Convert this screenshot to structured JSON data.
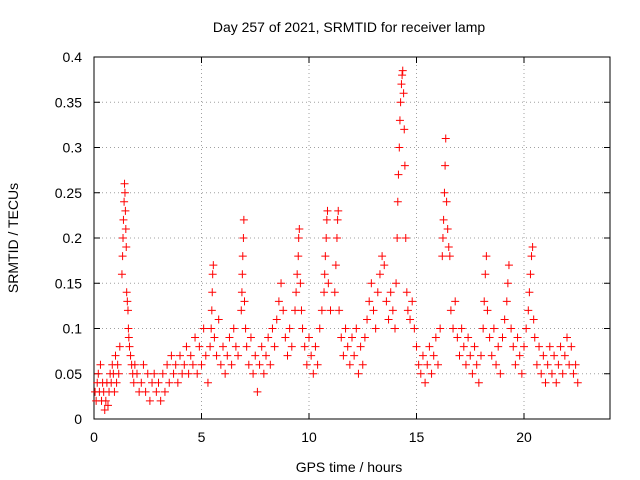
{
  "chart_data": {
    "type": "scatter",
    "title": "Day 257 of 2021, SRMTID for receiver lamp",
    "xlabel": "GPS time / hours",
    "ylabel": "SRMTID / TECUs",
    "xlim": [
      0,
      24
    ],
    "ylim": [
      0,
      0.4
    ],
    "xticks": [
      0,
      5,
      10,
      15,
      20
    ],
    "xtick_labels": [
      "0",
      "5",
      "10",
      "15",
      "20"
    ],
    "yticks": [
      0,
      0.05,
      0.1,
      0.15,
      0.2,
      0.25,
      0.3,
      0.35,
      0.4
    ],
    "ytick_labels": [
      "0",
      "0.05",
      "0.1",
      "0.15",
      "0.2",
      "0.25",
      "0.3",
      "0.35",
      "0.4"
    ],
    "grid": true,
    "marker": "plus",
    "marker_color": "#ff0000",
    "series": [
      {
        "name": "SRMTID",
        "points": [
          [
            0.05,
            0.03
          ],
          [
            0.1,
            0.02
          ],
          [
            0.15,
            0.04
          ],
          [
            0.2,
            0.05
          ],
          [
            0.25,
            0.03
          ],
          [
            0.3,
            0.06
          ],
          [
            0.35,
            0.02
          ],
          [
            0.4,
            0.04
          ],
          [
            0.45,
            0.03
          ],
          [
            0.5,
            0.01
          ],
          [
            0.55,
            0.02
          ],
          [
            0.6,
            0.04
          ],
          [
            0.65,
            0.015
          ],
          [
            0.7,
            0.03
          ],
          [
            0.75,
            0.05
          ],
          [
            0.8,
            0.04
          ],
          [
            0.85,
            0.06
          ],
          [
            0.9,
            0.05
          ],
          [
            0.95,
            0.03
          ],
          [
            1.0,
            0.07
          ],
          [
            1.05,
            0.04
          ],
          [
            1.1,
            0.06
          ],
          [
            1.15,
            0.05
          ],
          [
            1.2,
            0.08
          ],
          [
            1.3,
            0.16
          ],
          [
            1.33,
            0.18
          ],
          [
            1.35,
            0.2
          ],
          [
            1.37,
            0.22
          ],
          [
            1.4,
            0.24
          ],
          [
            1.42,
            0.26
          ],
          [
            1.44,
            0.25
          ],
          [
            1.46,
            0.23
          ],
          [
            1.48,
            0.21
          ],
          [
            1.5,
            0.19
          ],
          [
            1.52,
            0.14
          ],
          [
            1.55,
            0.13
          ],
          [
            1.58,
            0.12
          ],
          [
            1.6,
            0.1
          ],
          [
            1.62,
            0.09
          ],
          [
            1.65,
            0.08
          ],
          [
            1.7,
            0.07
          ],
          [
            1.75,
            0.06
          ],
          [
            1.8,
            0.05
          ],
          [
            1.85,
            0.04
          ],
          [
            1.9,
            0.06
          ],
          [
            2.0,
            0.05
          ],
          [
            2.1,
            0.03
          ],
          [
            2.2,
            0.04
          ],
          [
            2.3,
            0.06
          ],
          [
            2.4,
            0.03
          ],
          [
            2.5,
            0.05
          ],
          [
            2.6,
            0.02
          ],
          [
            2.7,
            0.04
          ],
          [
            2.8,
            0.05
          ],
          [
            2.9,
            0.03
          ],
          [
            3.0,
            0.04
          ],
          [
            3.1,
            0.02
          ],
          [
            3.2,
            0.05
          ],
          [
            3.3,
            0.03
          ],
          [
            3.4,
            0.06
          ],
          [
            3.5,
            0.04
          ],
          [
            3.6,
            0.07
          ],
          [
            3.7,
            0.05
          ],
          [
            3.8,
            0.06
          ],
          [
            3.9,
            0.04
          ],
          [
            4.0,
            0.07
          ],
          [
            4.1,
            0.05
          ],
          [
            4.2,
            0.06
          ],
          [
            4.3,
            0.08
          ],
          [
            4.4,
            0.05
          ],
          [
            4.5,
            0.07
          ],
          [
            4.6,
            0.06
          ],
          [
            4.7,
            0.09
          ],
          [
            4.8,
            0.05
          ],
          [
            4.9,
            0.08
          ],
          [
            5.0,
            0.06
          ],
          [
            5.1,
            0.1
          ],
          [
            5.2,
            0.07
          ],
          [
            5.3,
            0.04
          ],
          [
            5.4,
            0.08
          ],
          [
            5.45,
            0.1
          ],
          [
            5.48,
            0.12
          ],
          [
            5.5,
            0.14
          ],
          [
            5.52,
            0.16
          ],
          [
            5.55,
            0.17
          ],
          [
            5.6,
            0.09
          ],
          [
            5.7,
            0.07
          ],
          [
            5.8,
            0.11
          ],
          [
            5.9,
            0.06
          ],
          [
            6.0,
            0.08
          ],
          [
            6.1,
            0.05
          ],
          [
            6.2,
            0.07
          ],
          [
            6.3,
            0.09
          ],
          [
            6.4,
            0.06
          ],
          [
            6.5,
            0.1
          ],
          [
            6.6,
            0.08
          ],
          [
            6.7,
            0.07
          ],
          [
            6.85,
            0.12
          ],
          [
            6.88,
            0.14
          ],
          [
            6.9,
            0.16
          ],
          [
            6.92,
            0.18
          ],
          [
            6.95,
            0.2
          ],
          [
            6.97,
            0.22
          ],
          [
            7.0,
            0.13
          ],
          [
            7.05,
            0.1
          ],
          [
            7.1,
            0.08
          ],
          [
            7.2,
            0.06
          ],
          [
            7.3,
            0.09
          ],
          [
            7.4,
            0.05
          ],
          [
            7.5,
            0.07
          ],
          [
            7.6,
            0.03
          ],
          [
            7.7,
            0.06
          ],
          [
            7.8,
            0.08
          ],
          [
            7.9,
            0.05
          ],
          [
            8.0,
            0.07
          ],
          [
            8.1,
            0.09
          ],
          [
            8.2,
            0.06
          ],
          [
            8.3,
            0.1
          ],
          [
            8.4,
            0.08
          ],
          [
            8.5,
            0.11
          ],
          [
            8.6,
            0.13
          ],
          [
            8.7,
            0.15
          ],
          [
            8.8,
            0.12
          ],
          [
            8.9,
            0.09
          ],
          [
            9.0,
            0.07
          ],
          [
            9.1,
            0.1
          ],
          [
            9.2,
            0.08
          ],
          [
            9.35,
            0.12
          ],
          [
            9.4,
            0.14
          ],
          [
            9.45,
            0.16
          ],
          [
            9.5,
            0.18
          ],
          [
            9.52,
            0.2
          ],
          [
            9.55,
            0.21
          ],
          [
            9.6,
            0.15
          ],
          [
            9.65,
            0.12
          ],
          [
            9.7,
            0.1
          ],
          [
            9.8,
            0.08
          ],
          [
            9.9,
            0.06
          ],
          [
            10.0,
            0.09
          ],
          [
            10.1,
            0.07
          ],
          [
            10.2,
            0.05
          ],
          [
            10.3,
            0.08
          ],
          [
            10.4,
            0.06
          ],
          [
            10.5,
            0.1
          ],
          [
            10.6,
            0.12
          ],
          [
            10.7,
            0.14
          ],
          [
            10.73,
            0.16
          ],
          [
            10.76,
            0.18
          ],
          [
            10.8,
            0.2
          ],
          [
            10.83,
            0.22
          ],
          [
            10.86,
            0.23
          ],
          [
            10.9,
            0.15
          ],
          [
            11.0,
            0.12
          ],
          [
            11.2,
            0.14
          ],
          [
            11.25,
            0.17
          ],
          [
            11.3,
            0.2
          ],
          [
            11.33,
            0.22
          ],
          [
            11.36,
            0.23
          ],
          [
            11.4,
            0.12
          ],
          [
            11.5,
            0.09
          ],
          [
            11.6,
            0.07
          ],
          [
            11.7,
            0.1
          ],
          [
            11.8,
            0.08
          ],
          [
            11.9,
            0.06
          ],
          [
            12.0,
            0.09
          ],
          [
            12.1,
            0.07
          ],
          [
            12.2,
            0.1
          ],
          [
            12.3,
            0.05
          ],
          [
            12.4,
            0.08
          ],
          [
            12.5,
            0.06
          ],
          [
            12.6,
            0.09
          ],
          [
            12.7,
            0.11
          ],
          [
            12.8,
            0.13
          ],
          [
            12.9,
            0.15
          ],
          [
            13.0,
            0.12
          ],
          [
            13.1,
            0.1
          ],
          [
            13.2,
            0.14
          ],
          [
            13.3,
            0.16
          ],
          [
            13.4,
            0.18
          ],
          [
            13.5,
            0.17
          ],
          [
            13.6,
            0.13
          ],
          [
            13.7,
            0.11
          ],
          [
            13.8,
            0.14
          ],
          [
            13.9,
            0.12
          ],
          [
            14.0,
            0.1
          ],
          [
            14.05,
            0.15
          ],
          [
            14.1,
            0.2
          ],
          [
            14.13,
            0.24
          ],
          [
            14.16,
            0.27
          ],
          [
            14.2,
            0.3
          ],
          [
            14.23,
            0.33
          ],
          [
            14.26,
            0.35
          ],
          [
            14.3,
            0.37
          ],
          [
            14.33,
            0.38
          ],
          [
            14.36,
            0.385
          ],
          [
            14.4,
            0.36
          ],
          [
            14.43,
            0.32
          ],
          [
            14.46,
            0.28
          ],
          [
            14.5,
            0.2
          ],
          [
            14.55,
            0.14
          ],
          [
            14.6,
            0.12
          ],
          [
            14.7,
            0.11
          ],
          [
            14.8,
            0.13
          ],
          [
            14.9,
            0.1
          ],
          [
            15.0,
            0.08
          ],
          [
            15.1,
            0.06
          ],
          [
            15.2,
            0.05
          ],
          [
            15.3,
            0.07
          ],
          [
            15.4,
            0.04
          ],
          [
            15.5,
            0.06
          ],
          [
            15.6,
            0.08
          ],
          [
            15.7,
            0.05
          ],
          [
            15.8,
            0.07
          ],
          [
            15.9,
            0.09
          ],
          [
            16.0,
            0.06
          ],
          [
            16.1,
            0.1
          ],
          [
            16.2,
            0.18
          ],
          [
            16.23,
            0.2
          ],
          [
            16.26,
            0.22
          ],
          [
            16.3,
            0.25
          ],
          [
            16.33,
            0.28
          ],
          [
            16.36,
            0.31
          ],
          [
            16.4,
            0.24
          ],
          [
            16.45,
            0.21
          ],
          [
            16.5,
            0.19
          ],
          [
            16.55,
            0.18
          ],
          [
            16.6,
            0.12
          ],
          [
            16.7,
            0.1
          ],
          [
            16.8,
            0.13
          ],
          [
            16.9,
            0.09
          ],
          [
            17.0,
            0.07
          ],
          [
            17.1,
            0.1
          ],
          [
            17.2,
            0.08
          ],
          [
            17.3,
            0.06
          ],
          [
            17.4,
            0.09
          ],
          [
            17.5,
            0.07
          ],
          [
            17.6,
            0.05
          ],
          [
            17.7,
            0.08
          ],
          [
            17.8,
            0.06
          ],
          [
            17.9,
            0.04
          ],
          [
            18.0,
            0.07
          ],
          [
            18.1,
            0.1
          ],
          [
            18.15,
            0.13
          ],
          [
            18.2,
            0.16
          ],
          [
            18.25,
            0.18
          ],
          [
            18.3,
            0.12
          ],
          [
            18.4,
            0.09
          ],
          [
            18.5,
            0.07
          ],
          [
            18.6,
            0.1
          ],
          [
            18.7,
            0.06
          ],
          [
            18.8,
            0.08
          ],
          [
            18.9,
            0.05
          ],
          [
            19.0,
            0.09
          ],
          [
            19.1,
            0.11
          ],
          [
            19.2,
            0.13
          ],
          [
            19.25,
            0.15
          ],
          [
            19.3,
            0.17
          ],
          [
            19.4,
            0.1
          ],
          [
            19.5,
            0.08
          ],
          [
            19.6,
            0.06
          ],
          [
            19.7,
            0.09
          ],
          [
            19.8,
            0.07
          ],
          [
            19.9,
            0.05
          ],
          [
            20.0,
            0.08
          ],
          [
            20.1,
            0.1
          ],
          [
            20.2,
            0.12
          ],
          [
            20.25,
            0.14
          ],
          [
            20.3,
            0.16
          ],
          [
            20.35,
            0.18
          ],
          [
            20.4,
            0.19
          ],
          [
            20.45,
            0.11
          ],
          [
            20.5,
            0.09
          ],
          [
            20.6,
            0.06
          ],
          [
            20.7,
            0.08
          ],
          [
            20.8,
            0.05
          ],
          [
            20.9,
            0.07
          ],
          [
            21.0,
            0.04
          ],
          [
            21.1,
            0.06
          ],
          [
            21.2,
            0.08
          ],
          [
            21.3,
            0.05
          ],
          [
            21.4,
            0.07
          ],
          [
            21.5,
            0.04
          ],
          [
            21.6,
            0.06
          ],
          [
            21.7,
            0.08
          ],
          [
            21.8,
            0.05
          ],
          [
            21.9,
            0.07
          ],
          [
            22.0,
            0.09
          ],
          [
            22.1,
            0.06
          ],
          [
            22.2,
            0.08
          ],
          [
            22.3,
            0.05
          ],
          [
            22.4,
            0.06
          ],
          [
            22.5,
            0.04
          ]
        ]
      }
    ]
  }
}
